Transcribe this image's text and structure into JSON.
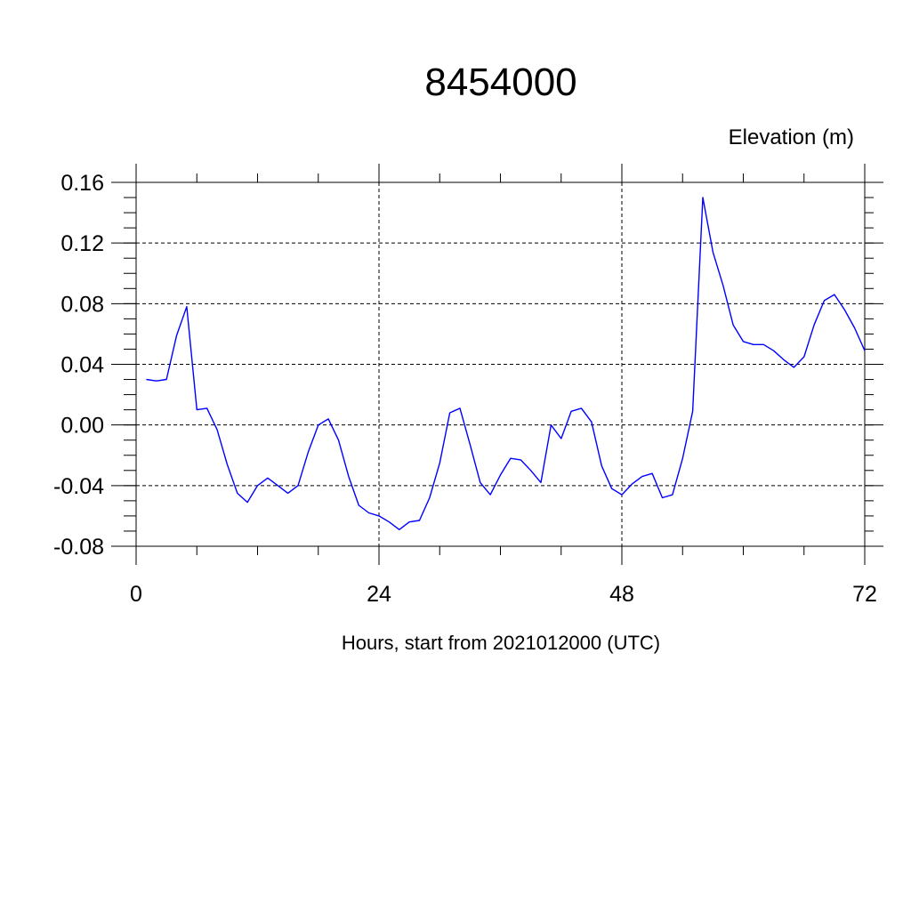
{
  "chart_data": {
    "type": "line",
    "title": "8454000",
    "units_label": "Elevation (m)",
    "xlabel": "Hours, start from 2021012000 (UTC)",
    "ylabel": "",
    "xlim": [
      0,
      72
    ],
    "ylim": [
      -0.08,
      0.16
    ],
    "x_ticks": [
      0,
      24,
      48,
      72
    ],
    "x_tick_labels": [
      "0",
      "24",
      "48",
      "72"
    ],
    "y_ticks": [
      -0.08,
      -0.04,
      0.0,
      0.04,
      0.08,
      0.12,
      0.16
    ],
    "y_tick_labels": [
      "-0.08",
      "-0.04",
      "0.00",
      "0.04",
      "0.08",
      "0.12",
      "0.16"
    ],
    "grid": true,
    "line_color": "#0000ff",
    "series": [
      {
        "x": [
          1,
          2,
          3,
          4,
          5,
          6,
          7,
          8,
          9,
          10,
          11,
          12,
          13,
          14,
          15,
          16,
          17,
          18,
          19,
          20,
          21,
          22,
          23,
          24,
          25,
          26,
          27,
          28,
          29,
          30,
          31,
          32,
          33,
          34,
          35,
          36,
          37,
          38,
          39,
          40,
          41,
          42,
          43,
          44,
          45,
          46,
          47,
          48,
          49,
          50,
          51,
          52,
          53,
          54,
          55,
          56,
          57,
          58,
          59,
          60,
          61,
          62,
          63,
          64,
          65,
          66,
          67,
          68,
          69,
          70,
          71,
          72
        ],
        "values": [
          0.03,
          0.029,
          0.03,
          0.059,
          0.078,
          0.01,
          0.011,
          -0.003,
          -0.026,
          -0.045,
          -0.051,
          -0.04,
          -0.035,
          -0.04,
          -0.045,
          -0.04,
          -0.018,
          0.0,
          0.004,
          -0.01,
          -0.034,
          -0.053,
          -0.058,
          -0.06,
          -0.064,
          -0.069,
          -0.064,
          -0.063,
          -0.048,
          -0.025,
          0.008,
          0.011,
          -0.013,
          -0.038,
          -0.046,
          -0.033,
          -0.022,
          -0.023,
          -0.03,
          -0.038,
          0.0,
          -0.009,
          0.009,
          0.011,
          0.002,
          -0.027,
          -0.042,
          -0.046,
          -0.039,
          -0.034,
          -0.032,
          -0.048,
          -0.046,
          -0.022,
          0.009,
          0.15,
          0.114,
          0.092,
          0.066,
          0.055,
          0.053,
          0.053,
          0.049,
          0.043,
          0.038,
          0.045,
          0.066,
          0.082,
          0.086,
          0.076,
          0.064,
          0.049
        ]
      }
    ]
  }
}
